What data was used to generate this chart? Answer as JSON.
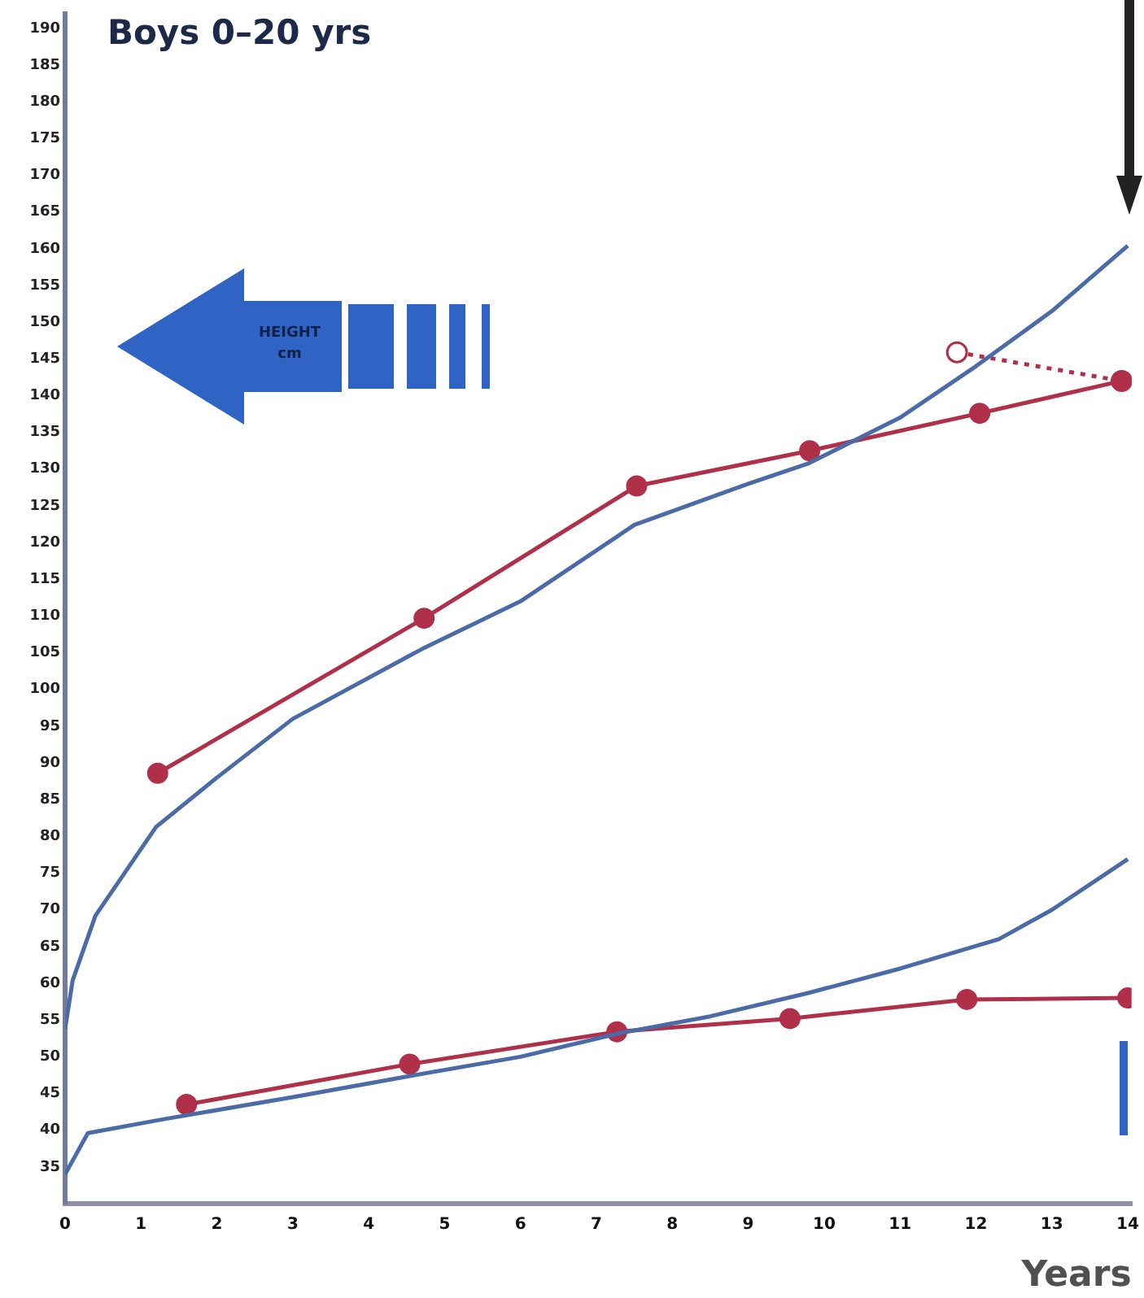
{
  "chart_data": {
    "type": "line",
    "title": "Boys 0–20 yrs",
    "xlabel": "Years",
    "annotations": [
      "HEIGHT",
      "cm"
    ],
    "xlim": [
      0,
      14.05
    ],
    "xticks": [
      0,
      1,
      2,
      3,
      4,
      5,
      6,
      7,
      8,
      9,
      10,
      11,
      12,
      13,
      14
    ],
    "ylim": [
      30,
      192
    ],
    "yticks": [
      35,
      40,
      45,
      50,
      55,
      60,
      65,
      70,
      75,
      80,
      85,
      90,
      95,
      100,
      105,
      110,
      115,
      120,
      125,
      130,
      135,
      140,
      145,
      150,
      155,
      160,
      165,
      170,
      175,
      180,
      185,
      190
    ],
    "grid": false,
    "legend": false,
    "series": [
      {
        "color": "#4a6aa8",
        "marker": "none",
        "line_style": "solid",
        "x": [
          0,
          0.1,
          0.4,
          1.2,
          2,
          3,
          4.7,
          6,
          7.5,
          9,
          9.8,
          11,
          12,
          13,
          14
        ],
        "values": [
          53.8,
          60.4,
          69.2,
          81.3,
          88,
          96,
          105.5,
          112,
          122.4,
          128,
          130.8,
          137,
          144,
          151.5,
          160.4
        ]
      },
      {
        "color": "#4a6aa8",
        "marker": "none",
        "line_style": "solid",
        "x": [
          0,
          0.3,
          1.3,
          3,
          4.5,
          6,
          7.3,
          8.5,
          9.8,
          11,
          12.3,
          13,
          14
        ],
        "values": [
          34,
          39.6,
          41.5,
          44.5,
          47.3,
          50,
          53.2,
          55.5,
          58.7,
          62,
          66,
          70,
          76.9
        ]
      },
      {
        "color": "#b0304a",
        "marker": "circle",
        "line_style": "solid",
        "x": [
          1.22,
          4.73,
          7.53,
          9.81,
          12.05,
          13.92
        ],
        "values": [
          88.6,
          109.7,
          127.7,
          132.5,
          137.6,
          142.0
        ]
      },
      {
        "color": "#b0304a",
        "marker": "circle",
        "line_style": "dotted",
        "x": [
          11.75,
          13.92
        ],
        "values": [
          145.9,
          142.0
        ]
      },
      {
        "color": "#b0304a",
        "marker": "circle",
        "line_style": "solid",
        "x": [
          1.6,
          4.54,
          7.27,
          9.55,
          11.88,
          14.0
        ],
        "values": [
          43.5,
          49.0,
          53.4,
          55.2,
          57.8,
          58.0
        ]
      }
    ]
  }
}
